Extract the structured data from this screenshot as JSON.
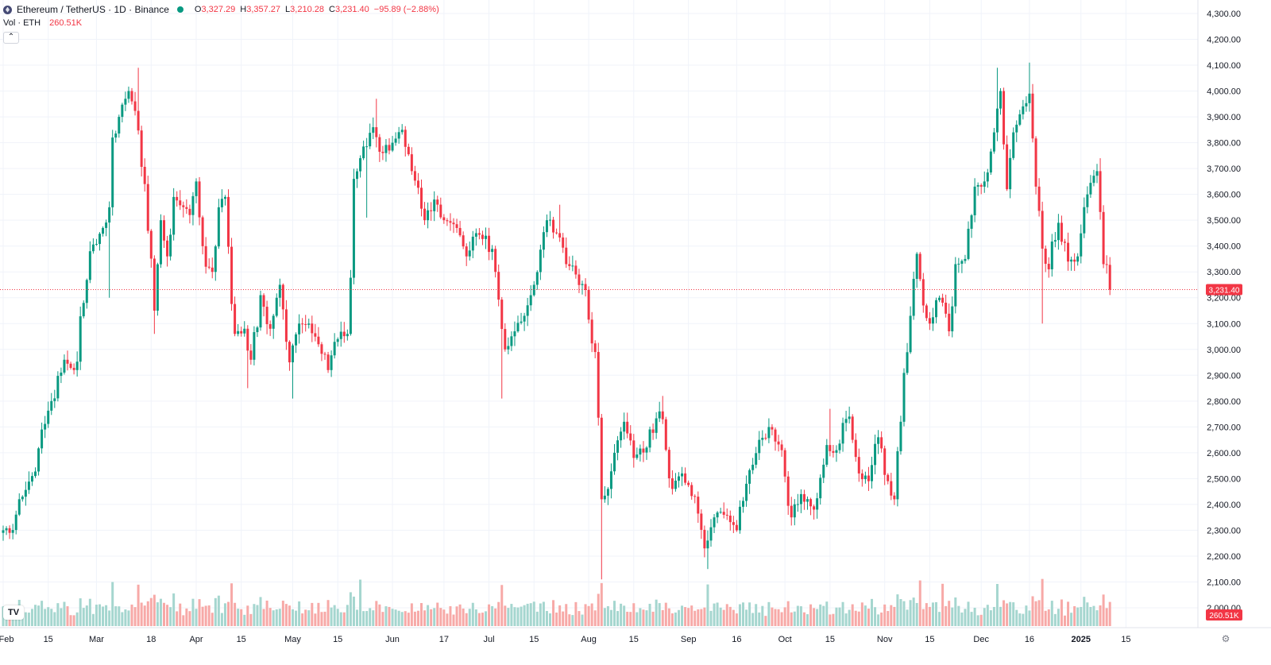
{
  "header": {
    "symbol_title": "Ethereum / TetherUS · 1D · Binance",
    "ohlc": {
      "open_label": "O",
      "open": "3,327.29",
      "high_label": "H",
      "high": "3,357.27",
      "low_label": "L",
      "low": "3,210.28",
      "close_label": "C",
      "close": "3,231.40",
      "change": "−95.89 (−2.88%)"
    }
  },
  "volume_legend": {
    "label": "Vol · ETH",
    "value": "260.51K"
  },
  "last_price_label": "3,231.40",
  "last_volume_label": "260.51K",
  "logo_text": "TV",
  "collapse_glyph": "⌃",
  "settings_icon": "gear-icon",
  "colors": {
    "up": "#089981",
    "down": "#f23645",
    "vol_up": "#a5d6cf",
    "vol_down": "#f7a9a7",
    "grid": "#f0f3fa",
    "axis_text": "#131722"
  },
  "chart_data": {
    "type": "candlestick",
    "symbol": "ETH/USDT",
    "interval": "1D",
    "x_ticks": [
      {
        "label": "Feb",
        "date": "2024-02-01"
      },
      {
        "label": "15",
        "date": "2024-02-15"
      },
      {
        "label": "Mar",
        "date": "2024-03-01"
      },
      {
        "label": "18",
        "date": "2024-03-18"
      },
      {
        "label": "Apr",
        "date": "2024-04-01"
      },
      {
        "label": "15",
        "date": "2024-04-15"
      },
      {
        "label": "May",
        "date": "2024-05-01"
      },
      {
        "label": "15",
        "date": "2024-05-15"
      },
      {
        "label": "Jun",
        "date": "2024-06-01"
      },
      {
        "label": "17",
        "date": "2024-06-17"
      },
      {
        "label": "Jul",
        "date": "2024-07-01"
      },
      {
        "label": "15",
        "date": "2024-07-15"
      },
      {
        "label": "Aug",
        "date": "2024-08-01"
      },
      {
        "label": "15",
        "date": "2024-08-15"
      },
      {
        "label": "Sep",
        "date": "2024-09-01"
      },
      {
        "label": "16",
        "date": "2024-09-16"
      },
      {
        "label": "Oct",
        "date": "2024-10-01"
      },
      {
        "label": "15",
        "date": "2024-10-15"
      },
      {
        "label": "Nov",
        "date": "2024-11-01"
      },
      {
        "label": "15",
        "date": "2024-11-15"
      },
      {
        "label": "Dec",
        "date": "2024-12-01"
      },
      {
        "label": "16",
        "date": "2024-12-16"
      },
      {
        "label": "2025",
        "date": "2025-01-01",
        "bold": true
      },
      {
        "label": "15",
        "date": "2025-01-15"
      }
    ],
    "y_ticks": [
      "2,000.00",
      "2,100.00",
      "2,200.00",
      "2,300.00",
      "2,400.00",
      "2,500.00",
      "2,600.00",
      "2,700.00",
      "2,800.00",
      "2,900.00",
      "3,000.00",
      "3,100.00",
      "3,200.00",
      "3,300.00",
      "3,400.00",
      "3,500.00",
      "3,600.00",
      "3,700.00",
      "3,800.00",
      "3,900.00",
      "4,000.00",
      "4,100.00",
      "4,200.00",
      "4,300.00"
    ],
    "y_range": [
      2000,
      4300
    ],
    "x_range": [
      "2024-02-01",
      "2025-01-20"
    ],
    "last_price": 3231.4,
    "grid": true,
    "close_anchors": [
      {
        "date": "2024-02-01",
        "close": 2300
      },
      {
        "date": "2024-02-03",
        "close": 2290
      },
      {
        "date": "2024-02-07",
        "close": 2430
      },
      {
        "date": "2024-02-10",
        "close": 2510
      },
      {
        "date": "2024-02-13",
        "close": 2690
      },
      {
        "date": "2024-02-16",
        "close": 2800
      },
      {
        "date": "2024-02-20",
        "close": 2960
      },
      {
        "date": "2024-02-23",
        "close": 2920
      },
      {
        "date": "2024-02-26",
        "close": 3180
      },
      {
        "date": "2024-02-28",
        "close": 3380
      },
      {
        "date": "2024-03-03",
        "close": 3470
      },
      {
        "date": "2024-03-05",
        "close": 3550
      },
      {
        "date": "2024-03-06",
        "close": 3820
      },
      {
        "date": "2024-03-08",
        "close": 3900
      },
      {
        "date": "2024-03-11",
        "close": 4000
      },
      {
        "date": "2024-03-12",
        "close": 3960
      },
      {
        "date": "2024-03-16",
        "close": 3640
      },
      {
        "date": "2024-03-19",
        "close": 3150
      },
      {
        "date": "2024-03-21",
        "close": 3500
      },
      {
        "date": "2024-03-23",
        "close": 3360
      },
      {
        "date": "2024-03-25",
        "close": 3590
      },
      {
        "date": "2024-03-30",
        "close": 3520
      },
      {
        "date": "2024-04-01",
        "close": 3650
      },
      {
        "date": "2024-04-04",
        "close": 3320
      },
      {
        "date": "2024-04-06",
        "close": 3300
      },
      {
        "date": "2024-04-08",
        "close": 3550
      },
      {
        "date": "2024-04-10",
        "close": 3590
      },
      {
        "date": "2024-04-13",
        "close": 3060
      },
      {
        "date": "2024-04-16",
        "close": 3080
      },
      {
        "date": "2024-04-18",
        "close": 2960
      },
      {
        "date": "2024-04-21",
        "close": 3210
      },
      {
        "date": "2024-04-24",
        "close": 3080
      },
      {
        "date": "2024-04-27",
        "close": 3250
      },
      {
        "date": "2024-04-30",
        "close": 2950
      },
      {
        "date": "2024-05-03",
        "close": 3100
      },
      {
        "date": "2024-05-06",
        "close": 3100
      },
      {
        "date": "2024-05-09",
        "close": 3020
      },
      {
        "date": "2024-05-12",
        "close": 2920
      },
      {
        "date": "2024-05-15",
        "close": 3040
      },
      {
        "date": "2024-05-18",
        "close": 3060
      },
      {
        "date": "2024-05-20",
        "close": 3660
      },
      {
        "date": "2024-05-22",
        "close": 3740
      },
      {
        "date": "2024-05-26",
        "close": 3860
      },
      {
        "date": "2024-05-29",
        "close": 3760
      },
      {
        "date": "2024-06-01",
        "close": 3800
      },
      {
        "date": "2024-06-04",
        "close": 3850
      },
      {
        "date": "2024-06-07",
        "close": 3690
      },
      {
        "date": "2024-06-11",
        "close": 3500
      },
      {
        "date": "2024-06-14",
        "close": 3580
      },
      {
        "date": "2024-06-17",
        "close": 3500
      },
      {
        "date": "2024-06-21",
        "close": 3470
      },
      {
        "date": "2024-06-24",
        "close": 3360
      },
      {
        "date": "2024-06-27",
        "close": 3450
      },
      {
        "date": "2024-06-30",
        "close": 3440
      },
      {
        "date": "2024-07-03",
        "close": 3300
      },
      {
        "date": "2024-07-06",
        "close": 3000
      },
      {
        "date": "2024-07-09",
        "close": 3070
      },
      {
        "date": "2024-07-12",
        "close": 3130
      },
      {
        "date": "2024-07-15",
        "close": 3250
      },
      {
        "date": "2024-07-19",
        "close": 3500
      },
      {
        "date": "2024-07-22",
        "close": 3450
      },
      {
        "date": "2024-07-25",
        "close": 3330
      },
      {
        "date": "2024-07-28",
        "close": 3290
      },
      {
        "date": "2024-07-31",
        "close": 3230
      },
      {
        "date": "2024-08-03",
        "close": 2990
      },
      {
        "date": "2024-08-05",
        "close": 2420
      },
      {
        "date": "2024-08-07",
        "close": 2460
      },
      {
        "date": "2024-08-09",
        "close": 2600
      },
      {
        "date": "2024-08-12",
        "close": 2720
      },
      {
        "date": "2024-08-15",
        "close": 2580
      },
      {
        "date": "2024-08-19",
        "close": 2620
      },
      {
        "date": "2024-08-23",
        "close": 2760
      },
      {
        "date": "2024-08-27",
        "close": 2460
      },
      {
        "date": "2024-08-30",
        "close": 2520
      },
      {
        "date": "2024-09-03",
        "close": 2430
      },
      {
        "date": "2024-09-06",
        "close": 2230
      },
      {
        "date": "2024-09-09",
        "close": 2350
      },
      {
        "date": "2024-09-12",
        "close": 2360
      },
      {
        "date": "2024-09-16",
        "close": 2300
      },
      {
        "date": "2024-09-19",
        "close": 2480
      },
      {
        "date": "2024-09-23",
        "close": 2650
      },
      {
        "date": "2024-09-27",
        "close": 2690
      },
      {
        "date": "2024-09-30",
        "close": 2610
      },
      {
        "date": "2024-10-03",
        "close": 2350
      },
      {
        "date": "2024-10-06",
        "close": 2440
      },
      {
        "date": "2024-10-10",
        "close": 2380
      },
      {
        "date": "2024-10-14",
        "close": 2630
      },
      {
        "date": "2024-10-17",
        "close": 2610
      },
      {
        "date": "2024-10-21",
        "close": 2740
      },
      {
        "date": "2024-10-24",
        "close": 2520
      },
      {
        "date": "2024-10-27",
        "close": 2490
      },
      {
        "date": "2024-10-30",
        "close": 2660
      },
      {
        "date": "2024-11-02",
        "close": 2490
      },
      {
        "date": "2024-11-04",
        "close": 2420
      },
      {
        "date": "2024-11-06",
        "close": 2720
      },
      {
        "date": "2024-11-09",
        "close": 3130
      },
      {
        "date": "2024-11-11",
        "close": 3370
      },
      {
        "date": "2024-11-13",
        "close": 3170
      },
      {
        "date": "2024-11-15",
        "close": 3100
      },
      {
        "date": "2024-11-18",
        "close": 3200
      },
      {
        "date": "2024-11-21",
        "close": 3070
      },
      {
        "date": "2024-11-23",
        "close": 3330
      },
      {
        "date": "2024-11-26",
        "close": 3350
      },
      {
        "date": "2024-11-29",
        "close": 3630
      },
      {
        "date": "2024-12-02",
        "close": 3650
      },
      {
        "date": "2024-12-05",
        "close": 3840
      },
      {
        "date": "2024-12-07",
        "close": 4000
      },
      {
        "date": "2024-12-09",
        "close": 3620
      },
      {
        "date": "2024-12-11",
        "close": 3840
      },
      {
        "date": "2024-12-13",
        "close": 3910
      },
      {
        "date": "2024-12-16",
        "close": 3990
      },
      {
        "date": "2024-12-18",
        "close": 3630
      },
      {
        "date": "2024-12-20",
        "close": 3390
      },
      {
        "date": "2024-12-22",
        "close": 3310
      },
      {
        "date": "2024-12-25",
        "close": 3490
      },
      {
        "date": "2024-12-28",
        "close": 3340
      },
      {
        "date": "2024-12-31",
        "close": 3360
      },
      {
        "date": "2025-01-03",
        "close": 3600
      },
      {
        "date": "2025-01-06",
        "close": 3690
      },
      {
        "date": "2025-01-08",
        "close": 3330
      },
      {
        "date": "2025-01-09",
        "close": 3327.29
      },
      {
        "date": "2025-01-10",
        "close": 3231.4
      }
    ],
    "spikes": [
      {
        "date": "2024-03-14",
        "high": 4090
      },
      {
        "date": "2024-03-05",
        "low": 3200
      },
      {
        "date": "2024-03-19",
        "low": 3060
      },
      {
        "date": "2024-04-17",
        "low": 2850
      },
      {
        "date": "2024-05-01",
        "low": 2810
      },
      {
        "date": "2024-05-27",
        "high": 3970
      },
      {
        "date": "2024-05-24",
        "low": 3510
      },
      {
        "date": "2024-07-05",
        "low": 2810
      },
      {
        "date": "2024-07-23",
        "high": 3560
      },
      {
        "date": "2024-08-05",
        "low": 2110
      },
      {
        "date": "2024-08-24",
        "high": 2820
      },
      {
        "date": "2024-09-07",
        "low": 2150
      },
      {
        "date": "2024-10-15",
        "high": 2770
      },
      {
        "date": "2024-12-06",
        "high": 4090
      },
      {
        "date": "2024-12-16",
        "high": 4110
      },
      {
        "date": "2024-12-20",
        "low": 3100
      },
      {
        "date": "2025-01-07",
        "high": 3740
      }
    ],
    "volume": {
      "label": "Vol · ETH",
      "last": "260.51K",
      "peak_dates": [
        "2024-03-06",
        "2024-03-14",
        "2024-04-12",
        "2024-05-22",
        "2024-07-05",
        "2024-08-05",
        "2024-09-07",
        "2024-11-12",
        "2024-11-19",
        "2024-12-06",
        "2024-12-20"
      ]
    }
  }
}
